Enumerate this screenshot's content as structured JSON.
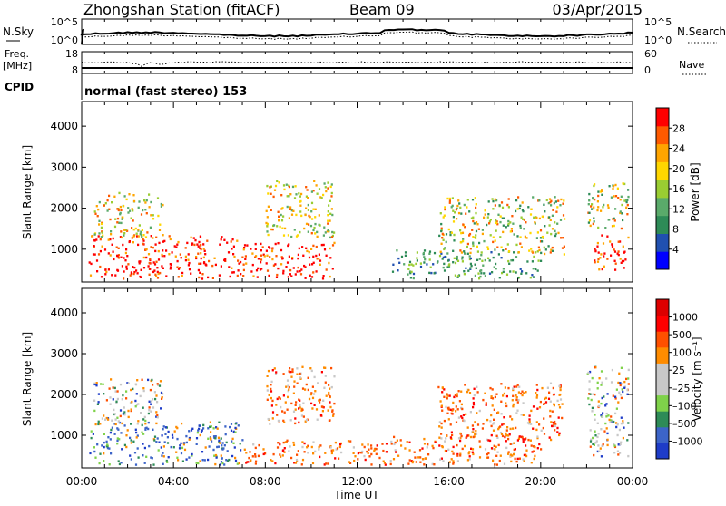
{
  "header": {
    "title": "Zhongshan Station (fitACF)",
    "beam": "Beam 09",
    "date": "03/Apr/2015"
  },
  "summary": {
    "nsky_label": "N.Sky",
    "nsky_ticks": [
      "10^5",
      "10^0"
    ],
    "nsearch_label": "N.Search",
    "nsearch_ticks": [
      "10^5",
      "10^0"
    ],
    "freq_label": "Freq.",
    "freq_unit": "[MHz]",
    "freq_ticks": [
      "18",
      "8"
    ],
    "nave_label": "Nave",
    "nave_ticks": [
      "60",
      "0"
    ],
    "cpid_label": "CPID",
    "cpid_text": "normal (fast stereo) 153"
  },
  "colors": {
    "power": [
      "#0000ff",
      "#2050b0",
      "#2e8b57",
      "#5aaa6a",
      "#9acd32",
      "#ffd700",
      "#ffa500",
      "#ff5a00",
      "#ff0000"
    ],
    "velocity": [
      "#1e3cc8",
      "#3c64c8",
      "#2e8b57",
      "#7fd24a",
      "#c8c8c8",
      "#c8c8c8",
      "#ff8c00",
      "#ff5000",
      "#ff0000",
      "#dd0000"
    ]
  },
  "chart_data": [
    {
      "type": "heatmap",
      "panel": "power",
      "title": "",
      "xlabel": "",
      "ylabel": "Slant Range [km]",
      "xlim": [
        0,
        24
      ],
      "ylim": [
        200,
        4600
      ],
      "y_ticks": [
        1000,
        2000,
        3000,
        4000
      ],
      "x_tick_labels": [
        "00:00",
        "04:00",
        "08:00",
        "12:00",
        "16:00",
        "20:00",
        "00:00"
      ],
      "colorbar_label": "Power [dB]",
      "colorbar_ticks": [
        "4",
        "8",
        "12",
        "16",
        "20",
        "24",
        "28"
      ],
      "scatter_regions": [
        {
          "t": [
            0.3,
            7.0
          ],
          "r": [
            300,
            1350
          ],
          "level": "high"
        },
        {
          "t": [
            7.0,
            11.0
          ],
          "r": [
            300,
            1200
          ],
          "level": "high"
        },
        {
          "t": [
            0.5,
            3.5
          ],
          "r": [
            1300,
            2400
          ],
          "level": "mid"
        },
        {
          "t": [
            8.0,
            11.0
          ],
          "r": [
            1300,
            2700
          ],
          "level": "mid"
        },
        {
          "t": [
            13.5,
            20.0
          ],
          "r": [
            300,
            1000
          ],
          "level": "low"
        },
        {
          "t": [
            15.5,
            21.0
          ],
          "r": [
            900,
            2300
          ],
          "level": "mixed"
        },
        {
          "t": [
            22.3,
            23.8
          ],
          "r": [
            500,
            1400
          ],
          "level": "high"
        },
        {
          "t": [
            22.0,
            23.8
          ],
          "r": [
            1500,
            2700
          ],
          "level": "mixed"
        }
      ]
    },
    {
      "type": "heatmap",
      "panel": "velocity",
      "title": "",
      "xlabel": "Time UT",
      "ylabel": "Slant Range [km]",
      "xlim": [
        0,
        24
      ],
      "ylim": [
        200,
        4600
      ],
      "y_ticks": [
        1000,
        2000,
        3000,
        4000
      ],
      "x_tick_labels": [
        "00:00",
        "04:00",
        "08:00",
        "12:00",
        "16:00",
        "20:00",
        "00:00"
      ],
      "colorbar_label": "Velocity [m s⁻¹]",
      "colorbar_ticks": [
        "1000",
        "500",
        "100",
        "25",
        "–25",
        "–100",
        "–500",
        "–1000"
      ],
      "scatter_regions": [
        {
          "t": [
            0.3,
            7.0
          ],
          "r": [
            300,
            1350
          ],
          "level": "toward"
        },
        {
          "t": [
            7.0,
            13.5
          ],
          "r": [
            300,
            900
          ],
          "level": "away"
        },
        {
          "t": [
            0.5,
            3.5
          ],
          "r": [
            1300,
            2400
          ],
          "level": "mixed"
        },
        {
          "t": [
            8.0,
            11.0
          ],
          "r": [
            1300,
            2700
          ],
          "level": "away"
        },
        {
          "t": [
            13.5,
            20.0
          ],
          "r": [
            300,
            1000
          ],
          "level": "away"
        },
        {
          "t": [
            15.5,
            21.0
          ],
          "r": [
            900,
            2300
          ],
          "level": "away"
        },
        {
          "t": [
            22.0,
            23.8
          ],
          "r": [
            500,
            2700
          ],
          "level": "mixed"
        }
      ]
    }
  ]
}
